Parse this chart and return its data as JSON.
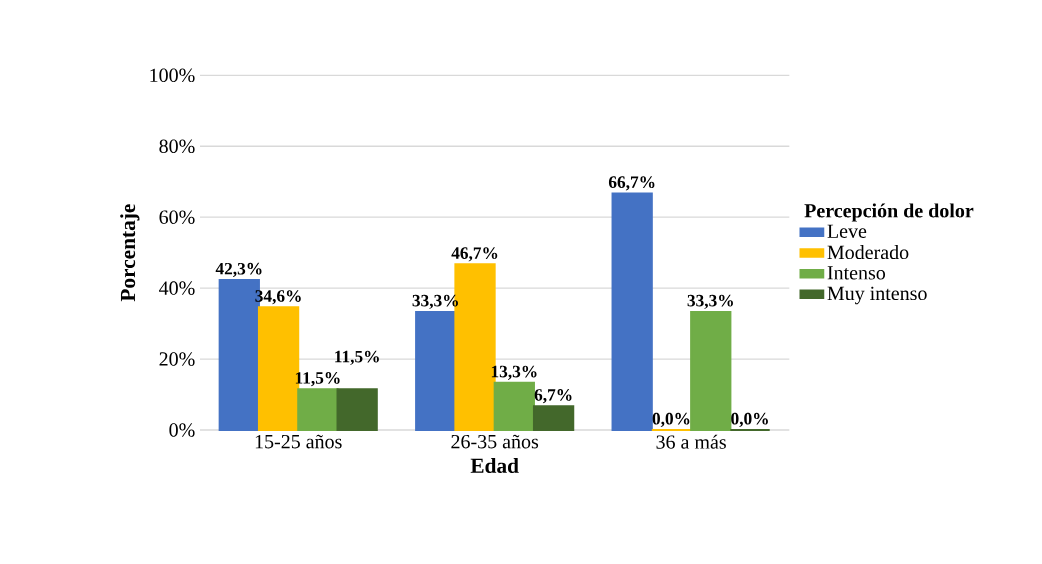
{
  "chart_data": {
    "type": "bar",
    "xlabel": "Edad",
    "ylabel": "Porcentaje",
    "legend_title": "Percepción de dolor",
    "categories": [
      "15-25 años",
      "26-35 años",
      "36 a más"
    ],
    "series": [
      {
        "name": "Leve",
        "color": "#4472c4",
        "values": [
          42.3,
          33.3,
          66.7
        ],
        "value_labels": [
          "42,3%",
          "33,3%",
          "66,7%"
        ]
      },
      {
        "name": "Moderado",
        "color": "#ffc000",
        "values": [
          34.6,
          46.7,
          0.0
        ],
        "value_labels": [
          "34,6%",
          "46,7%",
          "0,0%"
        ]
      },
      {
        "name": "Intenso",
        "color": "#70ad47",
        "values": [
          11.5,
          13.3,
          33.3
        ],
        "value_labels": [
          "11,5%",
          "13,3%",
          "33,3%"
        ]
      },
      {
        "name": "Muy intenso",
        "color": "#43682b",
        "values": [
          11.5,
          6.7,
          0.0
        ],
        "value_labels": [
          "11,5%",
          "6,7%",
          "0,0%"
        ]
      }
    ],
    "ylim": [
      0,
      100
    ],
    "yticks": [
      {
        "value": 0,
        "label": "0%"
      },
      {
        "value": 20,
        "label": "20%"
      },
      {
        "value": 40,
        "label": "40%"
      },
      {
        "value": 60,
        "label": "60%"
      },
      {
        "value": 80,
        "label": "80%"
      },
      {
        "value": 100,
        "label": "100%"
      }
    ],
    "grid": "y",
    "legend": "right"
  }
}
